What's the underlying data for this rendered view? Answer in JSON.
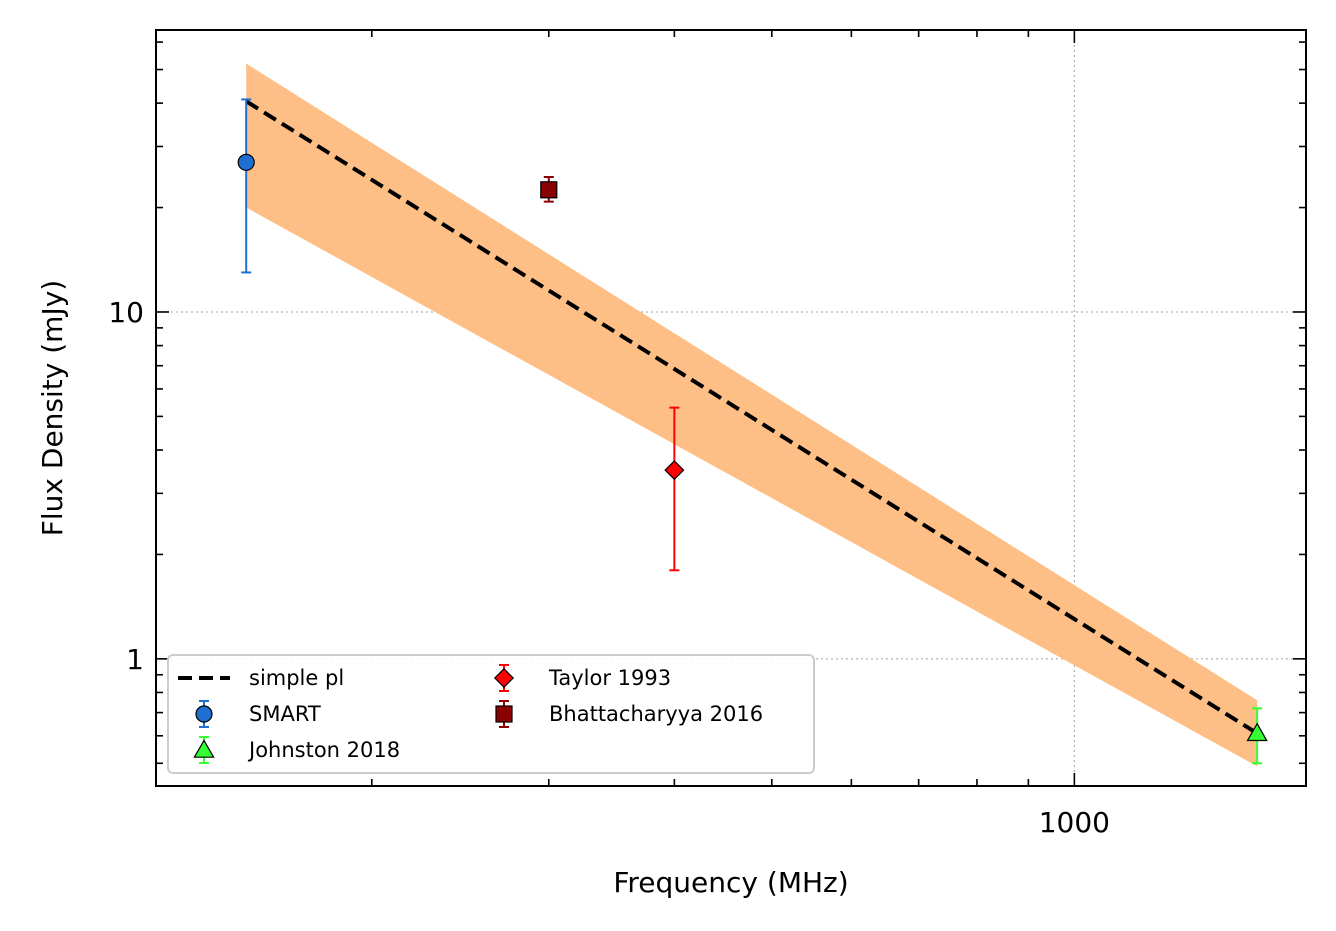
{
  "chart_data": {
    "type": "scatter",
    "xlabel": "Frequency (MHz)",
    "ylabel": "Flux Density (mJy)",
    "xscale": "log",
    "yscale": "log",
    "xlim": [
      122,
      1700
    ],
    "ylim": [
      0.43,
      65
    ],
    "x_ticks": [
      {
        "value": 1000,
        "label": "1000"
      }
    ],
    "y_ticks": [
      {
        "value": 1,
        "label": "1"
      },
      {
        "value": 10,
        "label": "10"
      }
    ],
    "grid": "dotted, major ticks",
    "legend_position": "lower-left",
    "fit": {
      "label": "simple pl",
      "color": "#000000",
      "style": "dashed",
      "x": [
        150,
        1520
      ],
      "y": [
        40.5,
        0.61
      ],
      "band_color": "#fdbf86",
      "band_upper": [
        52.0,
        0.76
      ],
      "band_lower": [
        20.0,
        0.49
      ]
    },
    "series": [
      {
        "name": "SMART",
        "marker": "circle",
        "color": "#1f6fd1",
        "edge": "#000000",
        "points": [
          {
            "x": 150,
            "y": 27.0,
            "err_low": 13.0,
            "err_high": 41.0
          }
        ]
      },
      {
        "name": "Johnston 2018",
        "marker": "triangle",
        "color": "#33ff33",
        "edge": "#000000",
        "points": [
          {
            "x": 1520,
            "y": 0.61,
            "err_low": 0.5,
            "err_high": 0.72
          }
        ]
      },
      {
        "name": "Taylor 1993",
        "marker": "diamond",
        "color": "#ff0000",
        "edge": "#000000",
        "points": [
          {
            "x": 400,
            "y": 3.5,
            "err_low": 1.8,
            "err_high": 5.3
          }
        ]
      },
      {
        "name": "Bhattacharyya 2016",
        "marker": "square",
        "color": "#8b0000",
        "edge": "#000000",
        "points": [
          {
            "x": 300,
            "y": 22.5,
            "err_low": 20.8,
            "err_high": 24.5
          }
        ]
      }
    ]
  }
}
